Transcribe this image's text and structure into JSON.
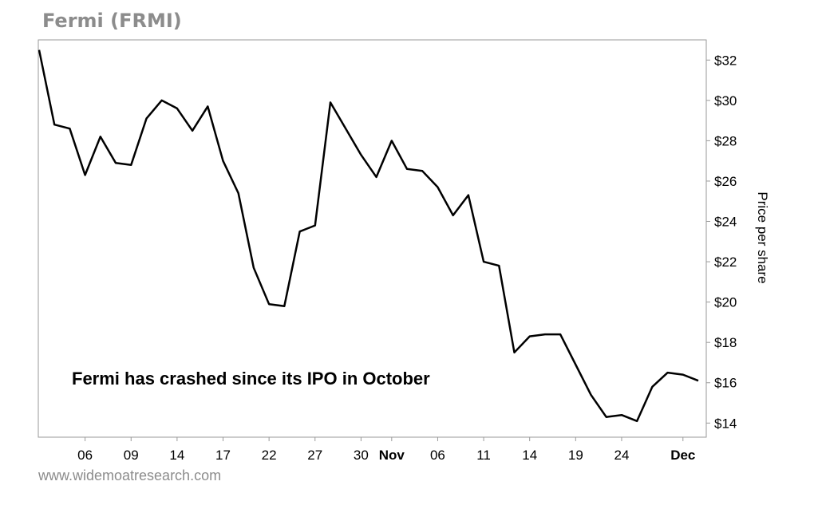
{
  "page": {
    "title": "Fermi (FRMI)",
    "source": "www.widemoatresearch.com"
  },
  "chart_data": {
    "type": "line",
    "title": "Fermi (FRMI)",
    "ylabel": "Price per share",
    "ylim": [
      13.3,
      33.0
    ],
    "y_ticks": [
      14,
      16,
      18,
      20,
      22,
      24,
      26,
      28,
      30,
      32
    ],
    "y_tick_labels": [
      "$14",
      "$16",
      "$18",
      "$20",
      "$22",
      "$24",
      "$26",
      "$28",
      "$30",
      "$32"
    ],
    "x_tick_labels": [
      {
        "label": "06",
        "bold": false,
        "index": 3
      },
      {
        "label": "09",
        "bold": false,
        "index": 6
      },
      {
        "label": "14",
        "bold": false,
        "index": 9
      },
      {
        "label": "17",
        "bold": false,
        "index": 12
      },
      {
        "label": "22",
        "bold": false,
        "index": 15
      },
      {
        "label": "27",
        "bold": false,
        "index": 18
      },
      {
        "label": "30",
        "bold": false,
        "index": 21
      },
      {
        "label": "Nov",
        "bold": true,
        "index": 23
      },
      {
        "label": "06",
        "bold": false,
        "index": 26
      },
      {
        "label": "11",
        "bold": false,
        "index": 29
      },
      {
        "label": "14",
        "bold": false,
        "index": 32
      },
      {
        "label": "19",
        "bold": false,
        "index": 35
      },
      {
        "label": "24",
        "bold": false,
        "index": 38
      },
      {
        "label": "Dec",
        "bold": true,
        "index": 42
      }
    ],
    "annotation": "Fermi has crashed since its IPO in October",
    "grid": false,
    "series": [
      {
        "color": "#000000",
        "values": [
          32.5,
          28.8,
          28.6,
          26.3,
          28.2,
          26.9,
          26.8,
          29.1,
          30.0,
          29.6,
          28.5,
          29.7,
          27.0,
          25.4,
          21.7,
          19.9,
          19.8,
          23.5,
          23.8,
          29.9,
          28.6,
          27.3,
          26.2,
          28.0,
          26.6,
          26.5,
          25.7,
          24.3,
          25.3,
          22.0,
          21.8,
          17.5,
          18.3,
          18.4,
          18.4,
          16.9,
          15.4,
          14.3,
          14.4,
          14.1,
          15.8,
          16.5,
          16.4,
          16.1
        ]
      }
    ]
  }
}
